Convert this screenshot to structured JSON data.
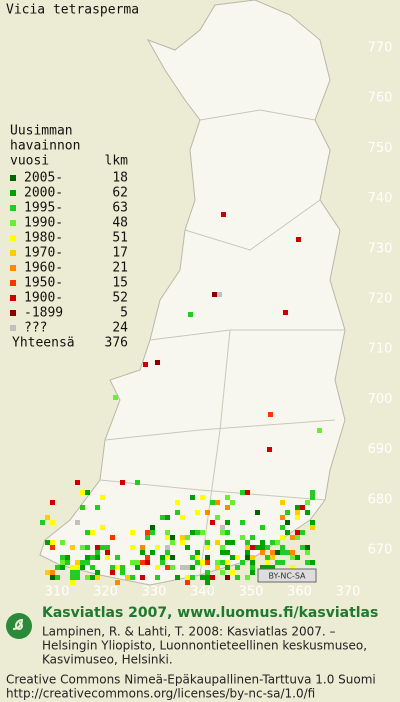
{
  "title": "Vicia tetrasperma",
  "legend": {
    "heading": [
      "Uusimman",
      "havainnon"
    ],
    "col_labels": [
      "vuosi",
      "lkm"
    ],
    "rows": [
      {
        "label": "2005-",
        "count": 18,
        "color": "#006400"
      },
      {
        "label": "2000-",
        "count": 62,
        "color": "#00a000"
      },
      {
        "label": "1995-",
        "count": 63,
        "color": "#22cc22"
      },
      {
        "label": "1990-",
        "count": 48,
        "color": "#66ee33"
      },
      {
        "label": "1980-",
        "count": 51,
        "color": "#ffff00"
      },
      {
        "label": "1970-",
        "count": 17,
        "color": "#ffcc00"
      },
      {
        "label": "1960-",
        "count": 21,
        "color": "#ff8800"
      },
      {
        "label": "1950-",
        "count": 15,
        "color": "#ff3300"
      },
      {
        "label": "1900-",
        "count": 52,
        "color": "#cc0000"
      },
      {
        "label": "-1899",
        "count": 5,
        "color": "#880000"
      },
      {
        "label": "???",
        "count": 24,
        "color": "#c0c0c0"
      }
    ],
    "total": {
      "label": "Yhteensä",
      "count": 376
    }
  },
  "y_axis": {
    "ticks": [
      770,
      760,
      750,
      740,
      730,
      720,
      710,
      700,
      690,
      680,
      670
    ]
  },
  "x_axis": {
    "ticks": [
      310,
      320,
      330,
      340,
      350,
      360,
      370
    ]
  },
  "license_badge": "BY-NC-SA",
  "footer": {
    "heading": "Kasviatlas 2007, www.luomus.fi/kasviatlas",
    "citation": [
      "Lampinen, R. & Lahti, T. 2008: Kasviatlas 2007. –",
      "Helsingin Yliopisto, Luonnontieteellinen keskusmuseo,",
      "Kasvimuseo, Helsinki."
    ],
    "license": [
      "Creative Commons Nimeä-Epäkaupallinen-Tarttuva 1.0 Suomi",
      "http://creativecommons.org/licenses/by-nc-sa/1.0/fi"
    ]
  }
}
